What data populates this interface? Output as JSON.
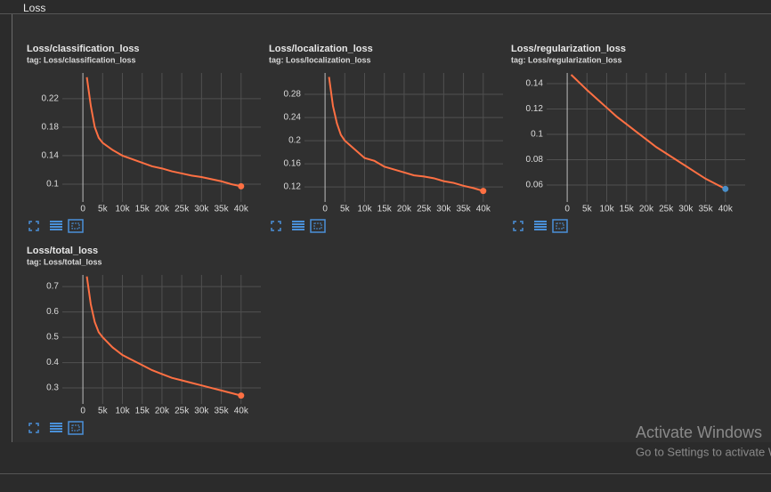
{
  "header": "Loss",
  "watermark": {
    "title": "Activate Windows",
    "subtitle": "Go to Settings to activate Windows."
  },
  "chart_data": [
    {
      "type": "line",
      "title": "Loss/classification_loss",
      "subtitle": "tag: Loss/classification_loss",
      "color": "#ff7043",
      "end_marker_color": "#ff7043",
      "grid": true,
      "x": [
        1000,
        2000,
        3000,
        4000,
        5000,
        7500,
        10000,
        12500,
        15000,
        17500,
        20000,
        22500,
        25000,
        27500,
        30000,
        32500,
        35000,
        37500,
        40000
      ],
      "values": [
        0.25,
        0.21,
        0.18,
        0.165,
        0.158,
        0.148,
        0.14,
        0.135,
        0.13,
        0.125,
        0.122,
        0.118,
        0.115,
        0.112,
        0.11,
        0.107,
        0.104,
        0.1,
        0.097
      ],
      "xlim": [
        -5200,
        45000
      ],
      "ylim": [
        0.075,
        0.256
      ],
      "xticks": [
        0,
        {
          "value": 5000,
          "label": "5k"
        },
        {
          "value": 10000,
          "label": "10k"
        },
        {
          "value": 15000,
          "label": "15k"
        },
        {
          "value": 20000,
          "label": "20k"
        },
        {
          "value": 25000,
          "label": "25k"
        },
        {
          "value": 30000,
          "label": "30k"
        },
        {
          "value": 35000,
          "label": "35k"
        },
        {
          "value": 40000,
          "label": "40k"
        }
      ],
      "yticks": [
        0.1,
        0.14,
        0.18,
        0.22
      ]
    },
    {
      "type": "line",
      "title": "Loss/localization_loss",
      "subtitle": "tag: Loss/localization_loss",
      "color": "#ff7043",
      "end_marker_color": "#ff7043",
      "grid": true,
      "x": [
        1000,
        2000,
        3000,
        4000,
        5000,
        7500,
        10000,
        12500,
        15000,
        17500,
        20000,
        22500,
        25000,
        27500,
        30000,
        32500,
        35000,
        37500,
        40000
      ],
      "values": [
        0.31,
        0.26,
        0.23,
        0.21,
        0.2,
        0.185,
        0.17,
        0.165,
        0.155,
        0.15,
        0.145,
        0.14,
        0.138,
        0.135,
        0.13,
        0.127,
        0.122,
        0.118,
        0.113
      ],
      "xlim": [
        -5200,
        45000
      ],
      "ylim": [
        0.094,
        0.317
      ],
      "xticks": [
        0,
        {
          "value": 5000,
          "label": "5k"
        },
        {
          "value": 10000,
          "label": "10k"
        },
        {
          "value": 15000,
          "label": "15k"
        },
        {
          "value": 20000,
          "label": "20k"
        },
        {
          "value": 25000,
          "label": "25k"
        },
        {
          "value": 30000,
          "label": "30k"
        },
        {
          "value": 35000,
          "label": "35k"
        },
        {
          "value": 40000,
          "label": "40k"
        }
      ],
      "yticks": [
        0.12,
        0.16,
        0.2,
        0.24,
        0.28
      ]
    },
    {
      "type": "line",
      "title": "Loss/regularization_loss",
      "subtitle": "tag: Loss/regularization_loss",
      "color": "#ff7043",
      "end_marker_color": "#4a8fc9",
      "grid": true,
      "x": [
        1000,
        2000,
        3000,
        4000,
        5000,
        7500,
        10000,
        12500,
        15000,
        17500,
        20000,
        22500,
        25000,
        27500,
        30000,
        32500,
        35000,
        37500,
        40000
      ],
      "values": [
        0.147,
        0.144,
        0.141,
        0.138,
        0.135,
        0.128,
        0.121,
        0.114,
        0.108,
        0.102,
        0.096,
        0.09,
        0.085,
        0.08,
        0.075,
        0.07,
        0.065,
        0.061,
        0.057
      ],
      "xlim": [
        -5200,
        45000
      ],
      "ylim": [
        0.0467,
        0.1484
      ],
      "xticks": [
        0,
        {
          "value": 5000,
          "label": "5k"
        },
        {
          "value": 10000,
          "label": "10k"
        },
        {
          "value": 15000,
          "label": "15k"
        },
        {
          "value": 20000,
          "label": "20k"
        },
        {
          "value": 25000,
          "label": "25k"
        },
        {
          "value": 30000,
          "label": "30k"
        },
        {
          "value": 35000,
          "label": "35k"
        },
        {
          "value": 40000,
          "label": "40k"
        }
      ],
      "yticks": [
        0.06,
        0.08,
        0.1,
        0.12,
        0.14
      ]
    },
    {
      "type": "line",
      "title": "Loss/total_loss",
      "subtitle": "tag: Loss/total_loss",
      "color": "#ff7043",
      "end_marker_color": "#ff7043",
      "grid": true,
      "x": [
        1000,
        2000,
        3000,
        4000,
        5000,
        7500,
        10000,
        12500,
        15000,
        17500,
        20000,
        22500,
        25000,
        27500,
        30000,
        32500,
        35000,
        37500,
        40000
      ],
      "values": [
        0.74,
        0.63,
        0.56,
        0.52,
        0.5,
        0.46,
        0.43,
        0.41,
        0.39,
        0.37,
        0.355,
        0.34,
        0.33,
        0.32,
        0.31,
        0.3,
        0.29,
        0.28,
        0.27
      ],
      "xlim": [
        -5200,
        45000
      ],
      "ylim": [
        0.237,
        0.746
      ],
      "xticks": [
        0,
        {
          "value": 5000,
          "label": "5k"
        },
        {
          "value": 10000,
          "label": "10k"
        },
        {
          "value": 15000,
          "label": "15k"
        },
        {
          "value": 20000,
          "label": "20k"
        },
        {
          "value": 25000,
          "label": "25k"
        },
        {
          "value": 30000,
          "label": "30k"
        },
        {
          "value": 35000,
          "label": "35k"
        },
        {
          "value": 40000,
          "label": "40k"
        }
      ],
      "yticks": [
        0.3,
        0.4,
        0.5,
        0.6,
        0.7
      ]
    }
  ]
}
